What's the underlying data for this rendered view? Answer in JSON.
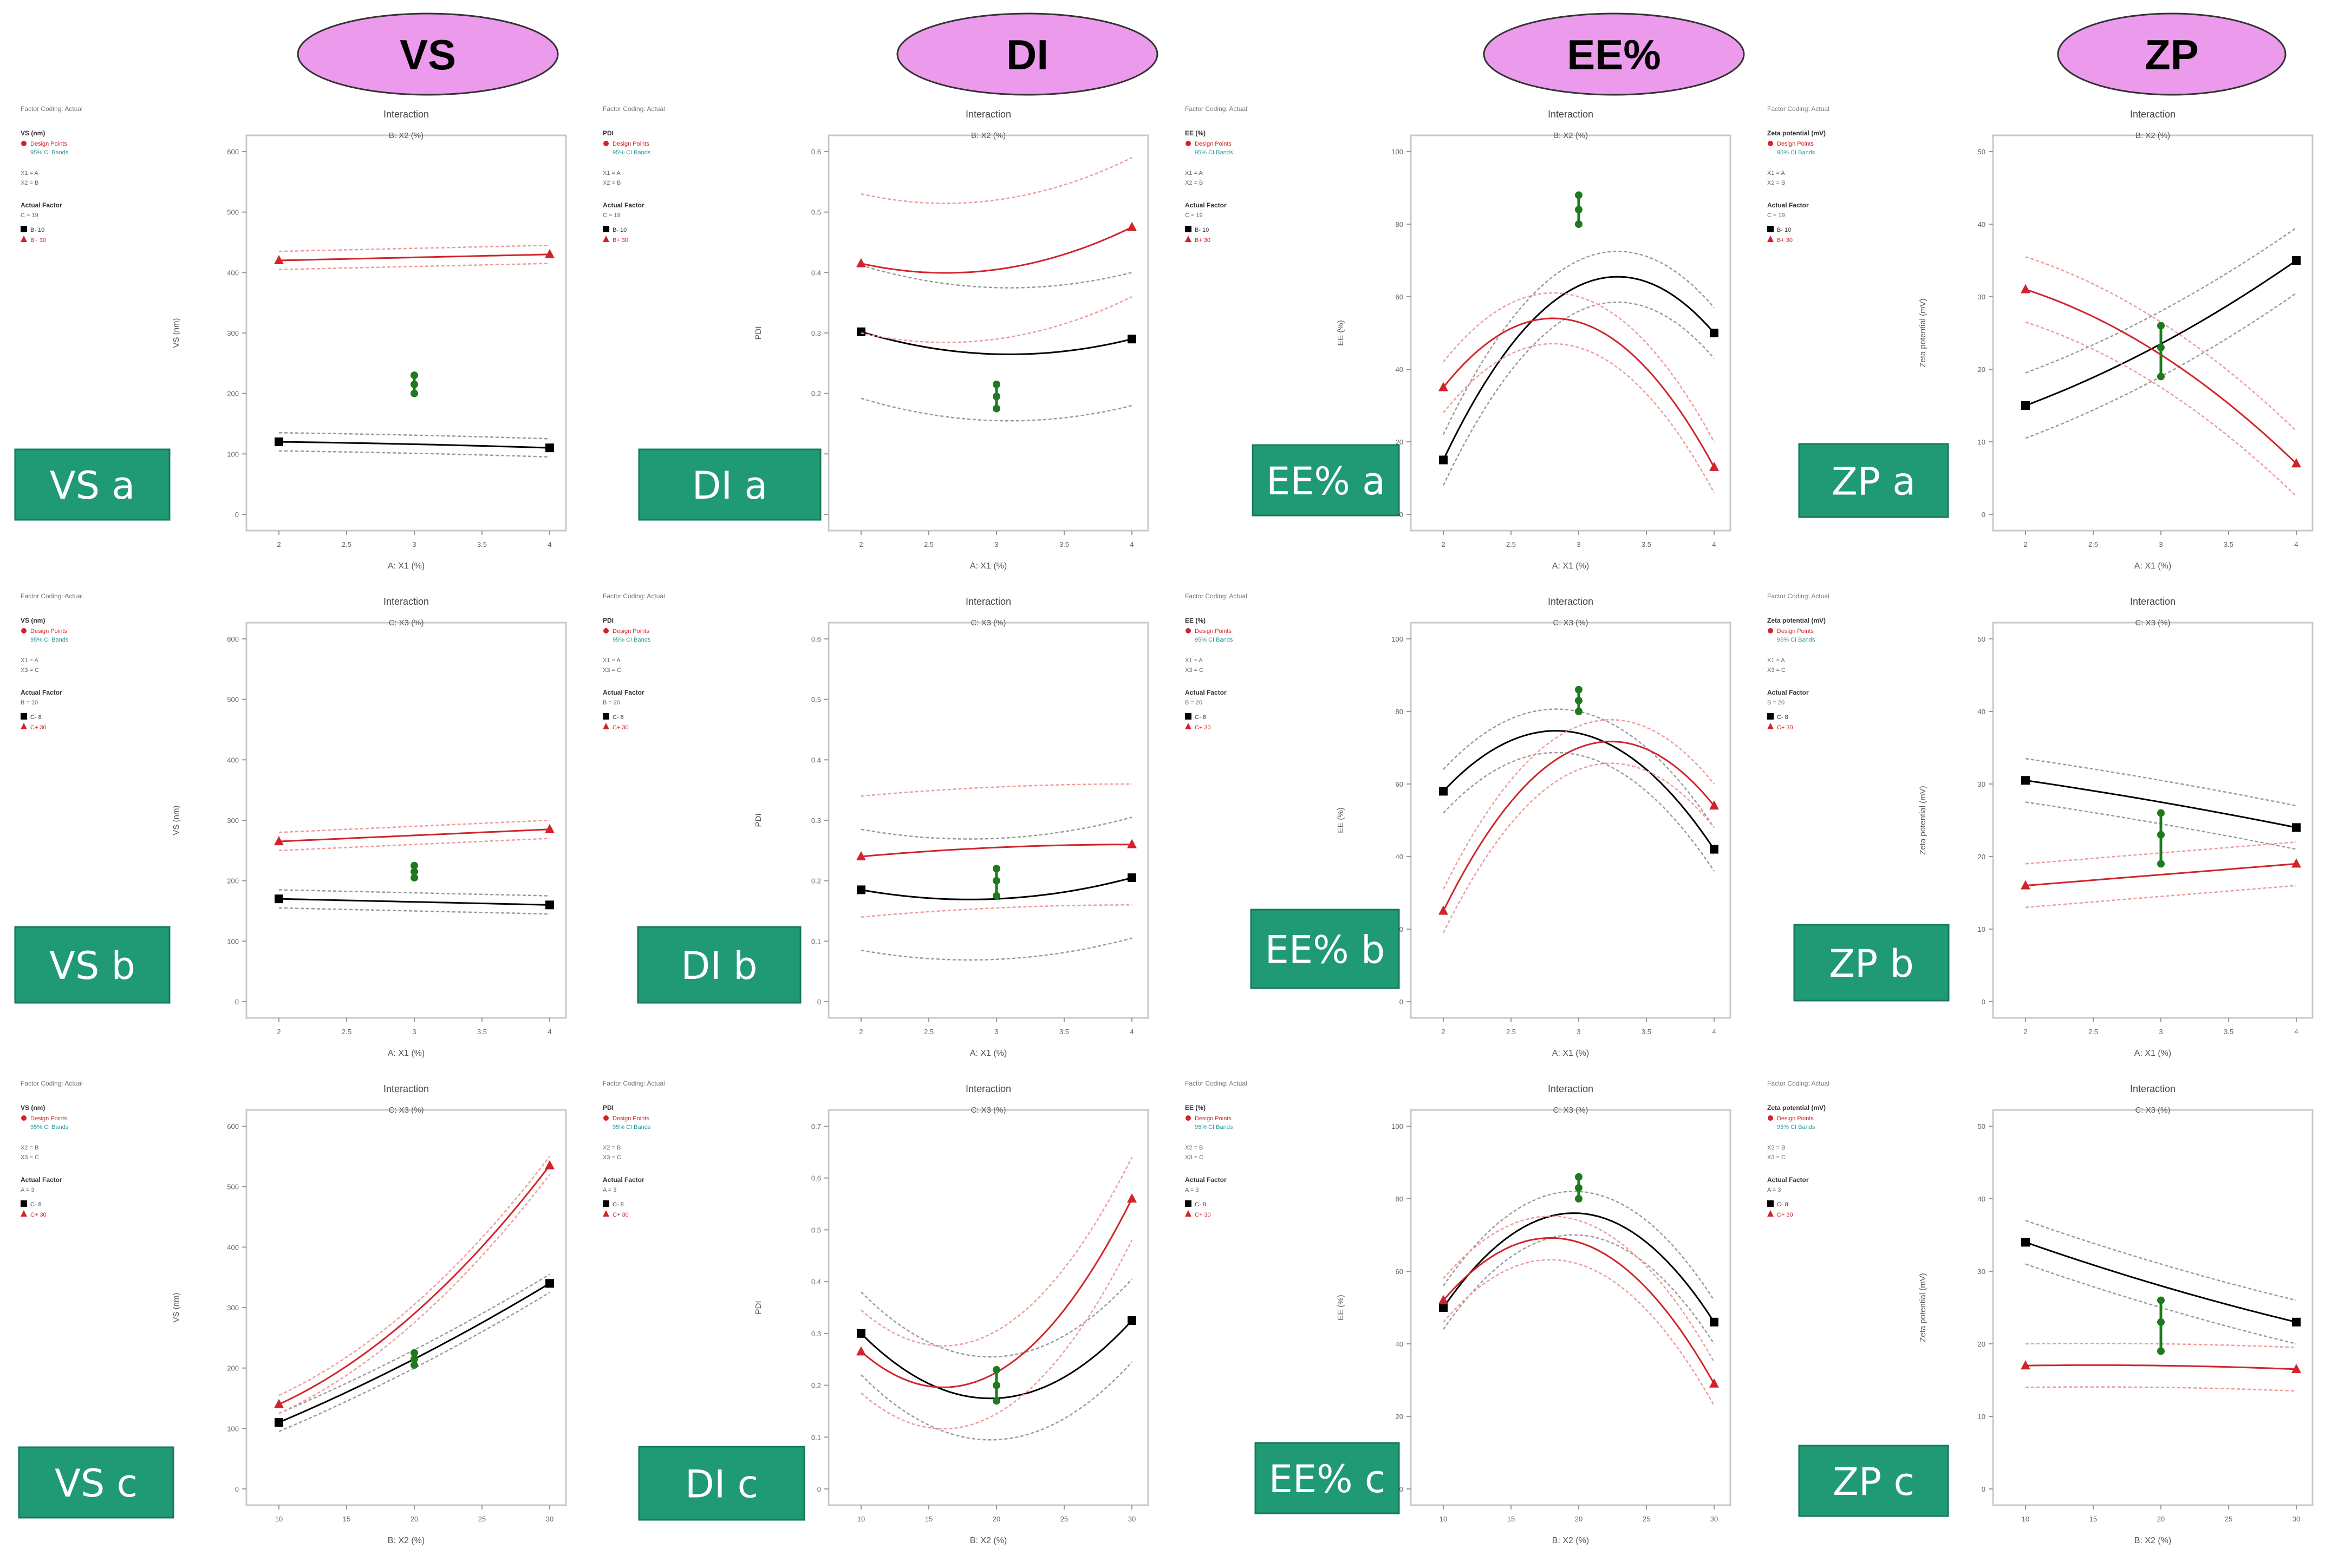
{
  "colors": {
    "header_fill": "#ec9aec",
    "header_stroke": "#333333",
    "label_fill": "#1f9a74",
    "label_text": "#ffffff",
    "series_low": "#000000",
    "series_high": "#d2232a",
    "center_point": "#1d7a1d",
    "ci_low": "#9a9a9a",
    "ci_high": "#ef9a9a"
  },
  "columns": [
    {
      "header": "VS"
    },
    {
      "header": "DI"
    },
    {
      "header": "EE%"
    },
    {
      "header": "ZP"
    }
  ],
  "chart_data": [
    {
      "id": "VS a",
      "label": "VS a",
      "type": "line",
      "title": "Interaction",
      "subtitle": "B: X2 (%)",
      "xlabel": "A: X1 (%)",
      "ylabel": "VS (nm)",
      "x": [
        2,
        3,
        4
      ],
      "xticks": [
        "2",
        "2.5",
        "3",
        "3.5",
        "4"
      ],
      "ylim": [
        0,
        600
      ],
      "yticks": [
        "0",
        "100",
        "200",
        "300",
        "400",
        "500",
        "600"
      ],
      "legend": {
        "heading": "Factor Coding: Actual",
        "response": "VS (nm)",
        "design_points": "Design Points",
        "ci": "95% CI Bands",
        "fixed": [
          "X1 = A",
          "X2 = B"
        ],
        "actual_factor": "Actual Factor",
        "actual_factor_value": "C = 19",
        "low": "B- 10",
        "high": "B+ 30"
      },
      "series": [
        {
          "name": "B- 10",
          "values": [
            120,
            116,
            110
          ],
          "ci_width": 15
        },
        {
          "name": "B+ 30",
          "values": [
            420,
            425,
            430
          ],
          "ci_width": 15
        }
      ],
      "center": [
        200,
        215,
        230
      ]
    },
    {
      "id": "DI a",
      "label": "DI a",
      "type": "line",
      "title": "Interaction",
      "subtitle": "B: X2 (%)",
      "xlabel": "A: X1 (%)",
      "ylabel": "PDI",
      "x": [
        2,
        3,
        4
      ],
      "xticks": [
        "2",
        "2.5",
        "3",
        "3.5",
        "4"
      ],
      "ylim": [
        0,
        0.6
      ],
      "yticks": [
        "0",
        "0.1",
        "0.2",
        "0.3",
        "0.4",
        "0.5",
        "0.6"
      ],
      "legend": {
        "heading": "Factor Coding: Actual",
        "response": "PDI",
        "design_points": "Design Points",
        "ci": "95% CI Bands",
        "fixed": [
          "X1 = A",
          "X2 = B"
        ],
        "actual_factor": "Actual Factor",
        "actual_factor_value": "C = 19",
        "low": "B- 10",
        "high": "B+ 30"
      },
      "series": [
        {
          "name": "B- 10",
          "values": [
            0.302,
            0.265,
            0.29
          ],
          "ci_width": 0.11
        },
        {
          "name": "B+ 30",
          "values": [
            0.415,
            0.405,
            0.475
          ],
          "ci_width": 0.115
        }
      ],
      "center": [
        0.175,
        0.195,
        0.215
      ]
    },
    {
      "id": "EE% a",
      "label": "EE% a",
      "type": "line",
      "title": "Interaction",
      "subtitle": "B: X2 (%)",
      "xlabel": "A: X1 (%)",
      "ylabel": "EE (%)",
      "x": [
        2,
        3,
        4
      ],
      "xticks": [
        "2",
        "2.5",
        "3",
        "3.5",
        "4"
      ],
      "ylim": [
        0,
        100
      ],
      "yticks": [
        "0",
        "20",
        "40",
        "60",
        "80",
        "100"
      ],
      "legend": {
        "heading": "Factor Coding: Actual",
        "response": "EE (%)",
        "design_points": "Design Points",
        "ci": "95% CI Bands",
        "fixed": [
          "X1 = A",
          "X2 = B"
        ],
        "actual_factor": "Actual Factor",
        "actual_factor_value": "C = 19",
        "low": "B- 10",
        "high": "B+ 30"
      },
      "series": [
        {
          "name": "B- 10",
          "values": [
            15,
            63,
            50
          ],
          "ci_width": 7
        },
        {
          "name": "B+ 30",
          "values": [
            35,
            53,
            13
          ],
          "ci_width": 7
        }
      ],
      "center": [
        80,
        84,
        88
      ]
    },
    {
      "id": "ZP a",
      "label": "ZP a",
      "type": "line",
      "title": "Interaction",
      "subtitle": "B: X2 (%)",
      "xlabel": "A: X1 (%)",
      "ylabel": "Zeta potential (mV)",
      "x": [
        2,
        3,
        4
      ],
      "xticks": [
        "2",
        "2.5",
        "3",
        "3.5",
        "4"
      ],
      "ylim": [
        0,
        50
      ],
      "yticks": [
        "0",
        "10",
        "20",
        "30",
        "40",
        "50"
      ],
      "legend": {
        "heading": "Factor Coding: Actual",
        "response": "Zeta potential (mV)",
        "design_points": "Design Points",
        "ci": "95% CI Bands",
        "fixed": [
          "X1 = A",
          "X2 = B"
        ],
        "actual_factor": "Actual Factor",
        "actual_factor_value": "C = 19",
        "low": "B- 10",
        "high": "B+ 30"
      },
      "series": [
        {
          "name": "B- 10",
          "values": [
            15,
            23.5,
            35
          ],
          "ci_width": 4.5
        },
        {
          "name": "B+ 30",
          "values": [
            31,
            22,
            7
          ],
          "ci_width": 4.5
        }
      ],
      "center": [
        19,
        23,
        26
      ]
    },
    {
      "id": "VS b",
      "label": "VS b",
      "type": "line",
      "title": "Interaction",
      "subtitle": "C: X3 (%)",
      "xlabel": "A: X1 (%)",
      "ylabel": "VS (nm)",
      "x": [
        2,
        3,
        4
      ],
      "xticks": [
        "2",
        "2.5",
        "3",
        "3.5",
        "4"
      ],
      "ylim": [
        0,
        600
      ],
      "yticks": [
        "0",
        "100",
        "200",
        "300",
        "400",
        "500",
        "600"
      ],
      "legend": {
        "heading": "Factor Coding: Actual",
        "response": "VS (nm)",
        "design_points": "Design Points",
        "ci": "95% CI Bands",
        "fixed": [
          "X1 = A",
          "X3 = C"
        ],
        "actual_factor": "Actual Factor",
        "actual_factor_value": "B = 20",
        "low": "C- 8",
        "high": "C+ 30"
      },
      "series": [
        {
          "name": "C- 8",
          "values": [
            170,
            165,
            160
          ],
          "ci_width": 15
        },
        {
          "name": "C+ 30",
          "values": [
            265,
            275,
            285
          ],
          "ci_width": 15
        }
      ],
      "center": [
        205,
        215,
        225
      ]
    },
    {
      "id": "DI b",
      "label": "DI b",
      "type": "line",
      "title": "Interaction",
      "subtitle": "C: X3 (%)",
      "xlabel": "A: X1 (%)",
      "ylabel": "PDI",
      "x": [
        2,
        3,
        4
      ],
      "xticks": [
        "2",
        "2.5",
        "3",
        "3.5",
        "4"
      ],
      "ylim": [
        0,
        0.6
      ],
      "yticks": [
        "0",
        "0.1",
        "0.2",
        "0.3",
        "0.4",
        "0.5",
        "0.6"
      ],
      "legend": {
        "heading": "Factor Coding: Actual",
        "response": "PDI",
        "design_points": "Design Points",
        "ci": "95% CI Bands",
        "fixed": [
          "X1 = A",
          "X3 = C"
        ],
        "actual_factor": "Actual Factor",
        "actual_factor_value": "B = 20",
        "low": "C- 8",
        "high": "C+ 30"
      },
      "series": [
        {
          "name": "C- 8",
          "values": [
            0.185,
            0.17,
            0.205
          ],
          "ci_width": 0.1
        },
        {
          "name": "C+ 30",
          "values": [
            0.24,
            0.255,
            0.26
          ],
          "ci_width": 0.1
        }
      ],
      "center": [
        0.175,
        0.2,
        0.22
      ]
    },
    {
      "id": "EE% b",
      "label": "EE% b",
      "type": "line",
      "title": "Interaction",
      "subtitle": "C: X3 (%)",
      "xlabel": "A: X1 (%)",
      "ylabel": "EE (%)",
      "x": [
        2,
        3,
        4
      ],
      "xticks": [
        "2",
        "2.5",
        "3",
        "3.5",
        "4"
      ],
      "ylim": [
        0,
        100
      ],
      "yticks": [
        "0",
        "20",
        "40",
        "60",
        "80",
        "100"
      ],
      "legend": {
        "heading": "Factor Coding: Actual",
        "response": "EE (%)",
        "design_points": "Design Points",
        "ci": "95% CI Bands",
        "fixed": [
          "X1 = A",
          "X3 = C"
        ],
        "actual_factor": "Actual Factor",
        "actual_factor_value": "B = 20",
        "low": "C- 8",
        "high": "C+ 30"
      },
      "series": [
        {
          "name": "C- 8",
          "values": [
            58,
            74,
            42
          ],
          "ci_width": 6
        },
        {
          "name": "C+ 30",
          "values": [
            25,
            70,
            54
          ],
          "ci_width": 6
        }
      ],
      "center": [
        80,
        83,
        86
      ]
    },
    {
      "id": "ZP b",
      "label": "ZP b",
      "type": "line",
      "title": "Interaction",
      "subtitle": "C: X3 (%)",
      "xlabel": "A: X1 (%)",
      "ylabel": "Zeta potential (mV)",
      "x": [
        2,
        3,
        4
      ],
      "xticks": [
        "2",
        "2.5",
        "3",
        "3.5",
        "4"
      ],
      "ylim": [
        0,
        50
      ],
      "yticks": [
        "0",
        "10",
        "20",
        "30",
        "40",
        "50"
      ],
      "legend": {
        "heading": "Factor Coding: Actual",
        "response": "Zeta potential (mV)",
        "design_points": "Design Points",
        "ci": "95% CI Bands",
        "fixed": [
          "X1 = A",
          "X3 = C"
        ],
        "actual_factor": "Actual Factor",
        "actual_factor_value": "B = 20",
        "low": "C- 8",
        "high": "C+ 30"
      },
      "series": [
        {
          "name": "C- 8",
          "values": [
            30.5,
            27.5,
            24
          ],
          "ci_width": 3
        },
        {
          "name": "C+ 30",
          "values": [
            16,
            17.5,
            19
          ],
          "ci_width": 3
        }
      ],
      "center": [
        19,
        23,
        26
      ]
    },
    {
      "id": "VS c",
      "label": "VS c",
      "type": "line",
      "title": "Interaction",
      "subtitle": "C: X3 (%)",
      "xlabel": "B: X2 (%)",
      "ylabel": "VS (nm)",
      "x": [
        10,
        20,
        30
      ],
      "xticks": [
        "10",
        "15",
        "20",
        "25",
        "30"
      ],
      "ylim": [
        0,
        600
      ],
      "yticks": [
        "0",
        "100",
        "200",
        "300",
        "400",
        "500",
        "600"
      ],
      "legend": {
        "heading": "Factor Coding: Actual",
        "response": "VS (nm)",
        "design_points": "Design Points",
        "ci": "95% CI Bands",
        "fixed": [
          "X2 = B",
          "X3 = C"
        ],
        "actual_factor": "Actual Factor",
        "actual_factor_value": "A = 3",
        "low": "C- 8",
        "high": "C+ 30"
      },
      "series": [
        {
          "name": "C- 8",
          "values": [
            110,
            215,
            340
          ],
          "ci_width": 15
        },
        {
          "name": "C+ 30",
          "values": [
            140,
            290,
            535
          ],
          "ci_width": 15
        }
      ],
      "center": [
        205,
        215,
        225
      ]
    },
    {
      "id": "DI c",
      "label": "DI c",
      "type": "line",
      "title": "Interaction",
      "subtitle": "C: X3 (%)",
      "xlabel": "B: X2 (%)",
      "ylabel": "PDI",
      "x": [
        10,
        20,
        30
      ],
      "xticks": [
        "10",
        "15",
        "20",
        "25",
        "30"
      ],
      "ylim": [
        0,
        0.7
      ],
      "yticks": [
        "0",
        "0.1",
        "0.2",
        "0.3",
        "0.4",
        "0.5",
        "0.6",
        "0.7"
      ],
      "legend": {
        "heading": "Factor Coding: Actual",
        "response": "PDI",
        "design_points": "Design Points",
        "ci": "95% CI Bands",
        "fixed": [
          "X2 = B",
          "X3 = C"
        ],
        "actual_factor": "Actual Factor",
        "actual_factor_value": "A = 3",
        "low": "C- 8",
        "high": "C+ 30"
      },
      "series": [
        {
          "name": "C- 8",
          "values": [
            0.3,
            0.175,
            0.325
          ],
          "ci_width": 0.08
        },
        {
          "name": "C+ 30",
          "values": [
            0.265,
            0.225,
            0.56
          ],
          "ci_width": 0.08
        }
      ],
      "center": [
        0.17,
        0.2,
        0.23
      ]
    },
    {
      "id": "EE% c",
      "label": "EE% c",
      "type": "line",
      "title": "Interaction",
      "subtitle": "C: X3 (%)",
      "xlabel": "B: X2 (%)",
      "ylabel": "EE (%)",
      "x": [
        10,
        20,
        30
      ],
      "xticks": [
        "10",
        "15",
        "20",
        "25",
        "30"
      ],
      "ylim": [
        0,
        100
      ],
      "yticks": [
        "0",
        "20",
        "40",
        "60",
        "80",
        "100"
      ],
      "legend": {
        "heading": "Factor Coding: Actual",
        "response": "EE (%)",
        "design_points": "Design Points",
        "ci": "95% CI Bands",
        "fixed": [
          "X2 = B",
          "X3 = C"
        ],
        "actual_factor": "Actual Factor",
        "actual_factor_value": "A = 3",
        "low": "C- 8",
        "high": "C+ 30"
      },
      "series": [
        {
          "name": "C- 8",
          "values": [
            50,
            76,
            46
          ],
          "ci_width": 6
        },
        {
          "name": "C+ 30",
          "values": [
            52,
            68,
            29
          ],
          "ci_width": 6
        }
      ],
      "center": [
        80,
        83,
        86
      ]
    },
    {
      "id": "ZP c",
      "label": "ZP c",
      "type": "line",
      "title": "Interaction",
      "subtitle": "C: X3 (%)",
      "xlabel": "B: X2 (%)",
      "ylabel": "Zeta potential (mV)",
      "x": [
        10,
        20,
        30
      ],
      "xticks": [
        "10",
        "15",
        "20",
        "25",
        "30"
      ],
      "ylim": [
        0,
        50
      ],
      "yticks": [
        "0",
        "10",
        "20",
        "30",
        "40",
        "50"
      ],
      "legend": {
        "heading": "Factor Coding: Actual",
        "response": "Zeta potential (mV)",
        "design_points": "Design Points",
        "ci": "95% CI Bands",
        "fixed": [
          "X2 = B",
          "X3 = C"
        ],
        "actual_factor": "Actual Factor",
        "actual_factor_value": "A = 3",
        "low": "C- 8",
        "high": "C+ 30"
      },
      "series": [
        {
          "name": "C- 8",
          "values": [
            34,
            28,
            23
          ],
          "ci_width": 3
        },
        {
          "name": "C+ 30",
          "values": [
            17,
            17,
            16.5
          ],
          "ci_width": 3
        }
      ],
      "center": [
        19,
        23,
        26
      ]
    }
  ]
}
